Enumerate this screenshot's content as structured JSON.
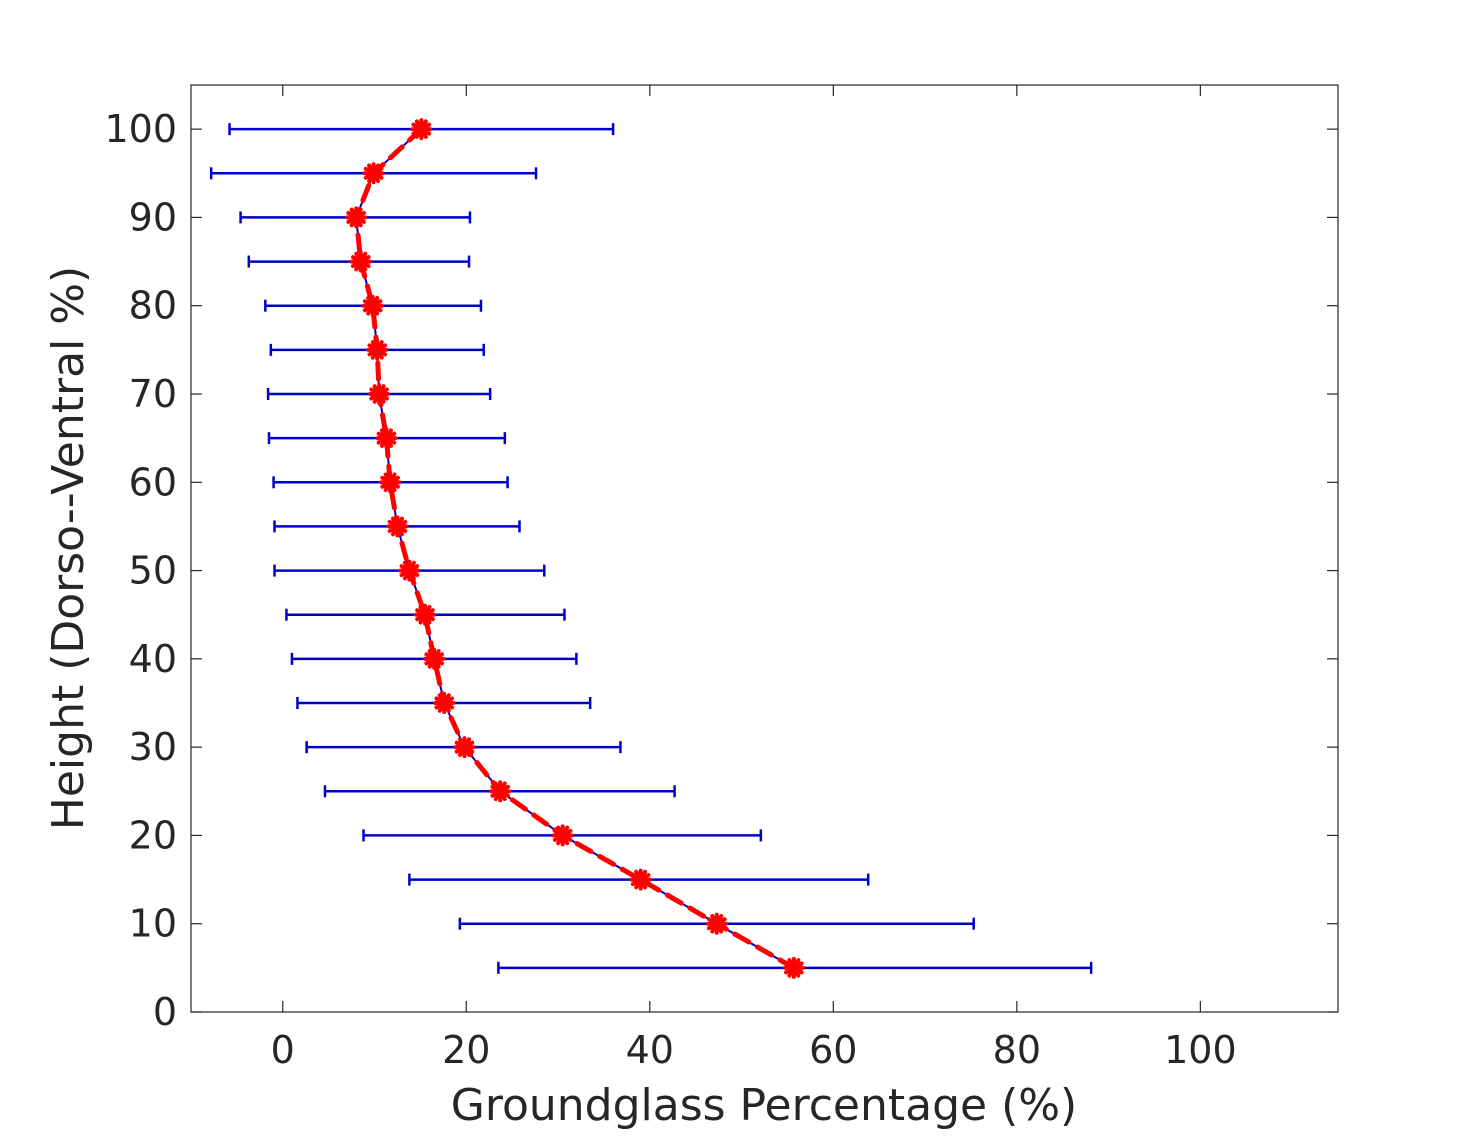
{
  "chart_data": {
    "type": "line",
    "title": "",
    "xlabel": "Groundglass Percentage (%)",
    "ylabel": "Height (Dorso--Ventral %)",
    "xlim": [
      -10,
      115
    ],
    "ylim": [
      0,
      105
    ],
    "xticks": [
      "0",
      "20",
      "40",
      "60",
      "80",
      "100"
    ],
    "yticks": [
      "0",
      "10",
      "20",
      "30",
      "40",
      "50",
      "60",
      "70",
      "80",
      "90",
      "100"
    ],
    "grid": false,
    "legend": "none",
    "colors": {
      "errorbar": "#0000cc",
      "marker": "#ff0000",
      "axis": "#262626"
    },
    "series": [
      {
        "y": [
          5,
          10,
          15,
          20,
          25,
          30,
          35,
          40,
          45,
          50,
          55,
          60,
          65,
          70,
          75,
          80,
          85,
          90,
          95,
          100
        ],
        "x": [
          55.7,
          47.3,
          39.0,
          30.5,
          23.7,
          19.8,
          17.6,
          16.5,
          15.5,
          13.8,
          12.5,
          11.7,
          11.3,
          10.5,
          10.3,
          9.8,
          8.5,
          8.0,
          9.9,
          15.1
        ],
        "xerr_low": [
          23.5,
          19.3,
          13.8,
          8.8,
          4.6,
          2.6,
          1.6,
          1.0,
          0.4,
          -0.9,
          -0.9,
          -1.0,
          -1.5,
          -1.6,
          -1.3,
          -1.9,
          -3.7,
          -4.6,
          -7.8,
          -5.8
        ],
        "xerr_high": [
          88.1,
          75.3,
          63.8,
          52.1,
          42.7,
          36.8,
          33.5,
          32.0,
          30.7,
          28.5,
          25.8,
          24.5,
          24.2,
          22.6,
          21.9,
          21.6,
          20.3,
          20.4,
          27.6,
          36.0
        ]
      }
    ]
  }
}
